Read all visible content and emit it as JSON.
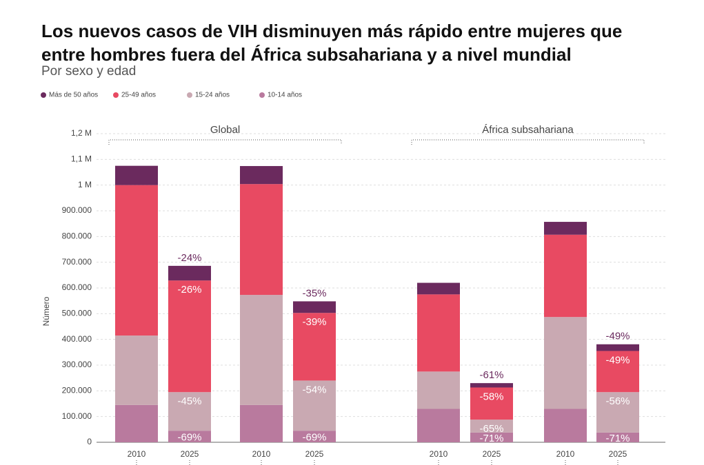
{
  "chart_data": {
    "type": "stacked-bar",
    "title": "Los nuevos casos de VIH disminuyen más rápido entre mujeres que entre hombres fuera del África subsahariana y a nivel mundial",
    "subtitle": "Por sexo y edad",
    "y_label": "Número",
    "group_labels": [
      "Global",
      "África subsahariana"
    ],
    "categories": [
      "2010",
      "2025",
      "2010",
      "2025",
      "2010",
      "2025",
      "2010",
      "2025"
    ],
    "ylim": [
      0,
      1200000
    ],
    "yticks": [
      0,
      {
        "value": 100000,
        "label": "100.000"
      },
      {
        "value": 200000,
        "label": "200.000"
      },
      {
        "value": 300000,
        "label": "300.000"
      },
      {
        "value": 400000,
        "label": "400.000"
      },
      {
        "value": 500000,
        "label": "500.000"
      },
      {
        "value": 600000,
        "label": "600.000"
      },
      {
        "value": 700000,
        "label": "700.000"
      },
      {
        "value": 800000,
        "label": "800.000"
      },
      {
        "value": 900000,
        "label": "900.000"
      },
      {
        "value": 1000000,
        "label": "1 M"
      },
      {
        "value": 1100000,
        "label": "1,1 M"
      },
      {
        "value": 1200000,
        "label": "1,2 M"
      }
    ],
    "grid": true,
    "series": [
      {
        "name": "Más de 50 años",
        "color": "#6b2a5e",
        "values": [
          75000,
          57000,
          70000,
          45000,
          45000,
          17000,
          50000,
          26000
        ],
        "change_labels": [
          null,
          "-24%",
          null,
          "-35%",
          null,
          "-61%",
          null,
          "-49%"
        ]
      },
      {
        "name": "25-49 años",
        "color": "#e84a62",
        "values": [
          585000,
          434000,
          431000,
          263000,
          300000,
          125000,
          320000,
          160000
        ],
        "change_labels": [
          null,
          "-26%",
          null,
          "-39%",
          null,
          "-58%",
          null,
          "-49%"
        ]
      },
      {
        "name": "15-24 años",
        "color": "#c9a9b2",
        "values": [
          270000,
          150000,
          428000,
          195000,
          145000,
          50000,
          357000,
          157000
        ],
        "change_labels": [
          null,
          "-45%",
          null,
          "-54%",
          null,
          "-65%",
          null,
          "-56%"
        ]
      },
      {
        "name": "10-14 años",
        "color": "#b97a9e",
        "values": [
          145000,
          45000,
          145000,
          45000,
          130000,
          38000,
          130000,
          38000
        ],
        "change_labels": [
          null,
          "-69%",
          null,
          "-69%",
          null,
          "-71%",
          null,
          "-71%"
        ]
      }
    ]
  }
}
